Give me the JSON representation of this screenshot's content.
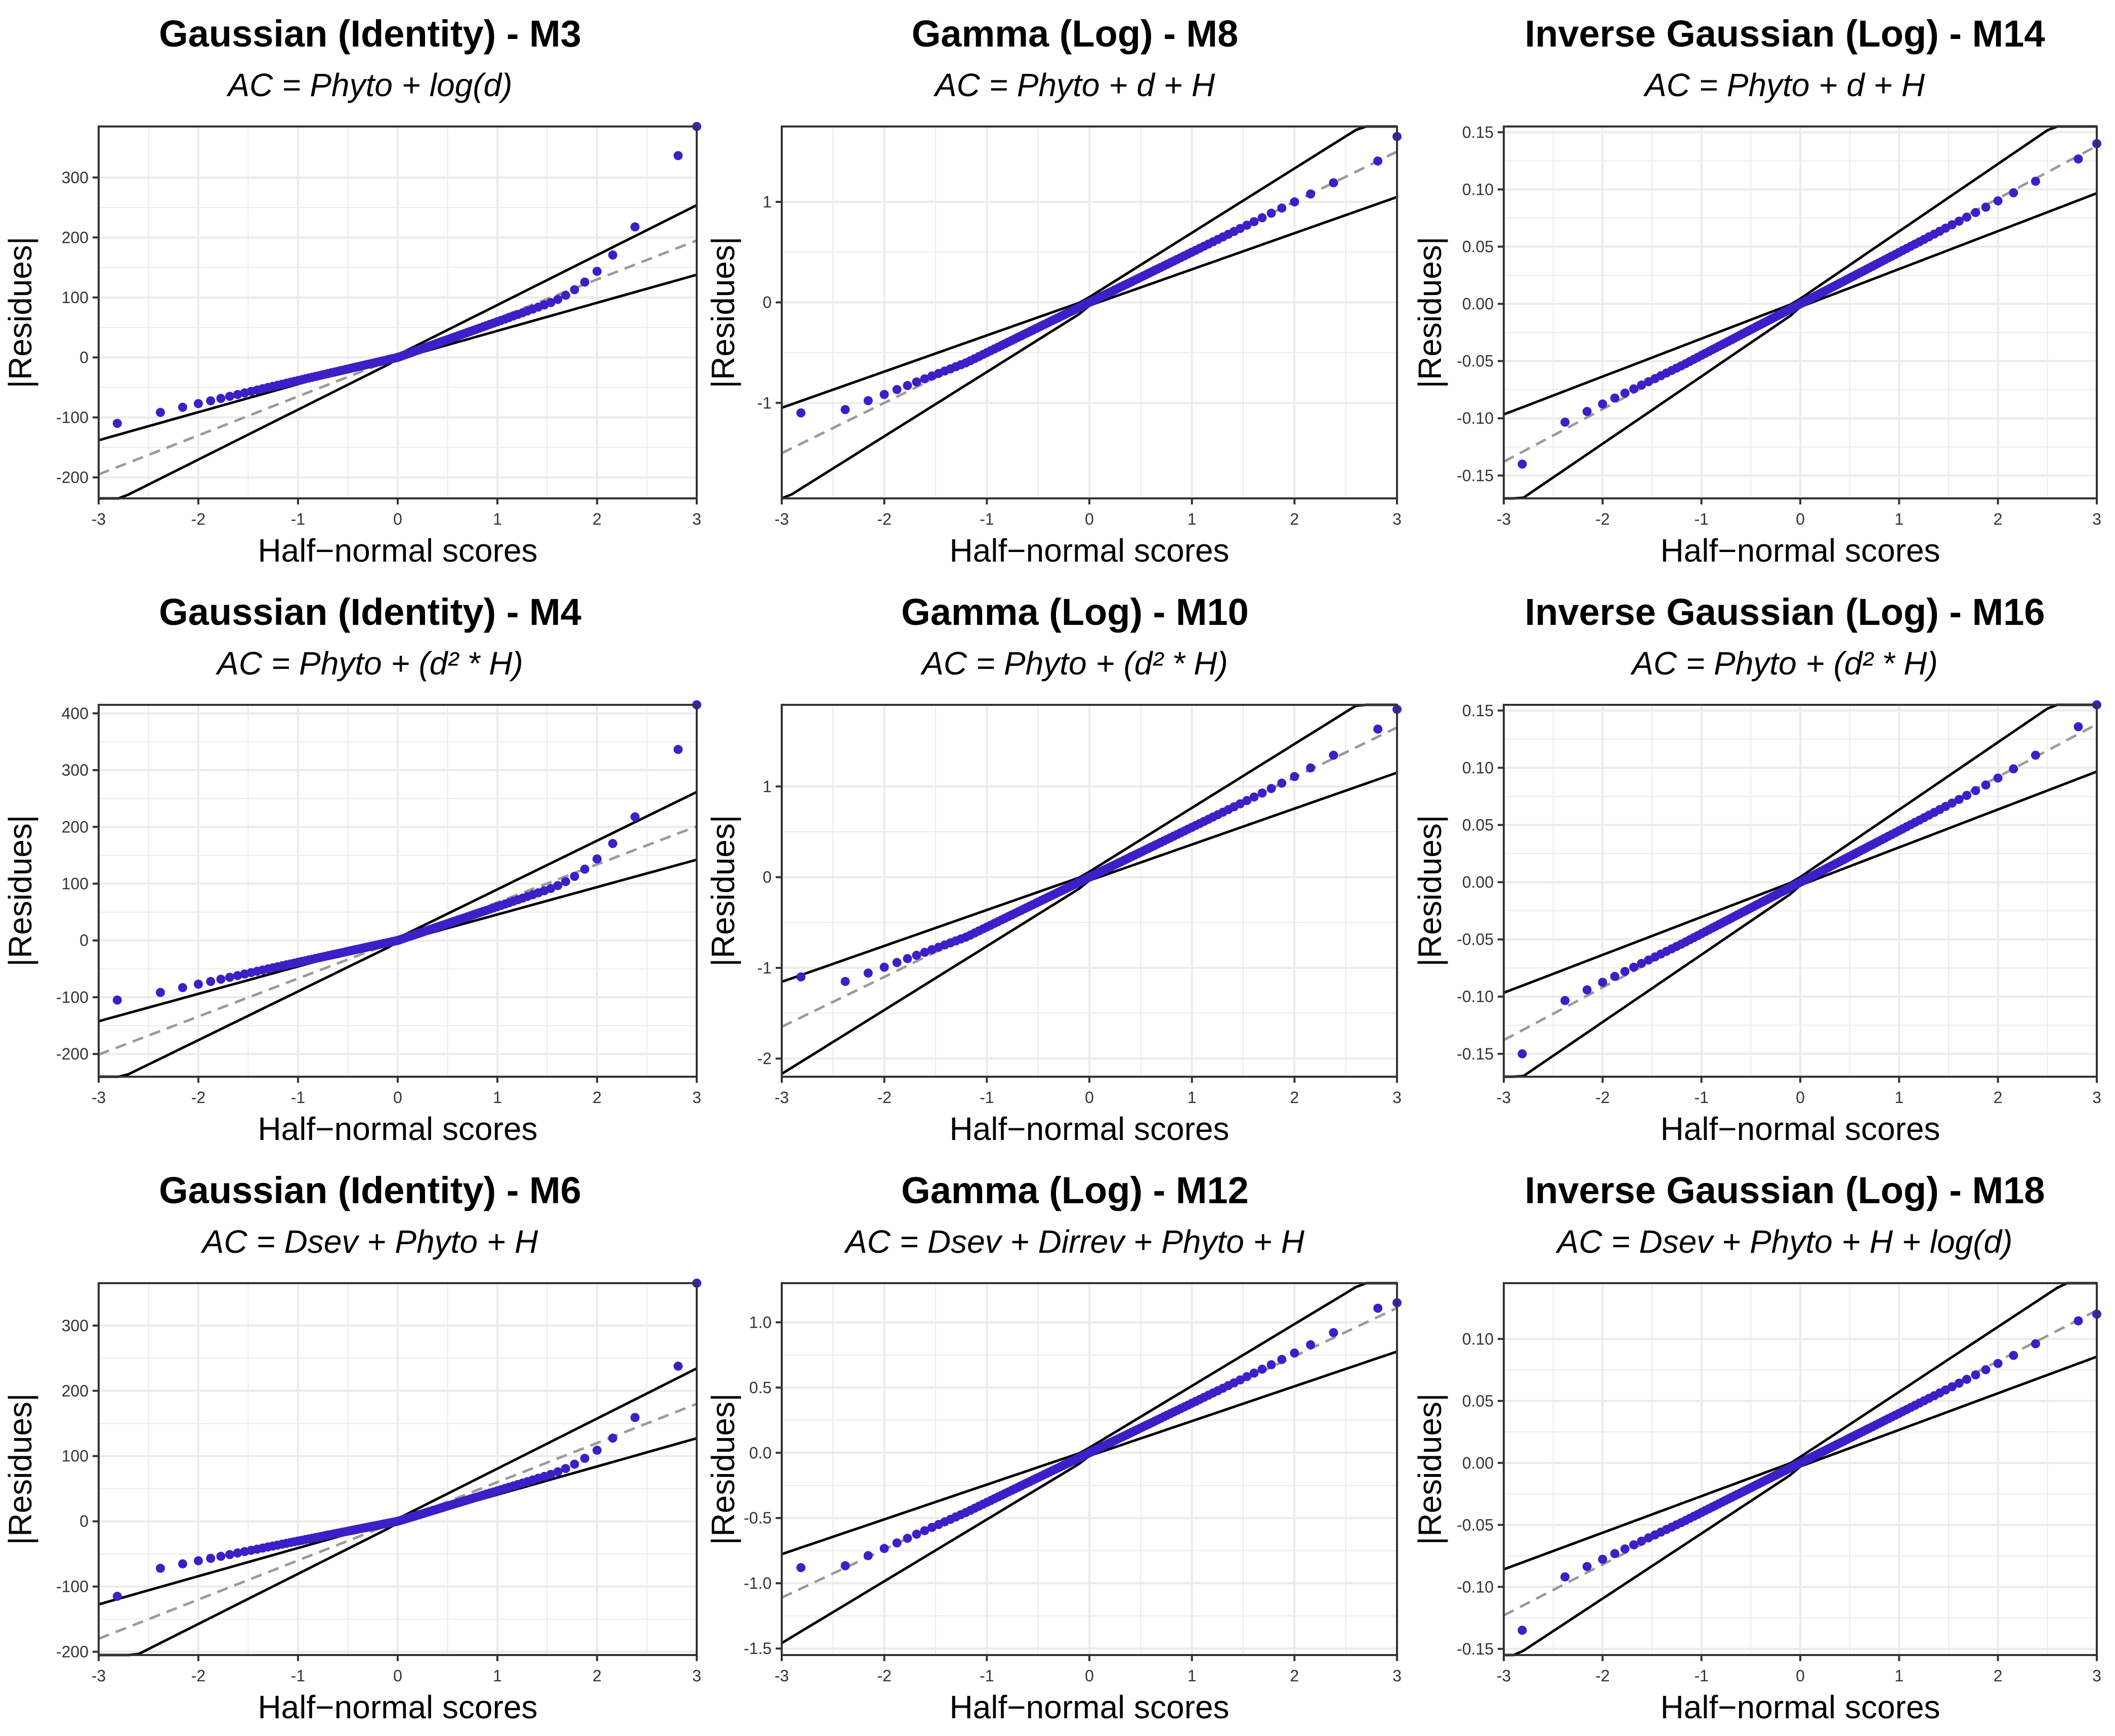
{
  "figure": {
    "colors": {
      "points": "#3d1fc7",
      "envelope": "#000000",
      "reference": "#9a9a9a",
      "grid": "#ebebeb",
      "frame": "#333333"
    }
  },
  "chart_data": [
    {
      "type": "scatter",
      "title": "Gaussian (Identity) - M3",
      "subtitle": "AC = Phyto + log(d)",
      "xlabel": "Half−normal scores",
      "ylabel": "|Residues|",
      "xlim": [
        -3,
        3
      ],
      "ylim": [
        -235,
        385
      ],
      "xticks": [
        -3,
        -2,
        -1,
        0,
        1,
        2,
        3
      ],
      "xtick_labels": [
        "-3",
        "-2",
        "-1",
        "0",
        "1",
        "2",
        "3"
      ],
      "yticks": [
        -200,
        -100,
        0,
        100,
        200,
        300
      ],
      "ytick_labels": [
        "-200",
        "-100",
        "0",
        "100",
        "200",
        "300"
      ],
      "series": [
        {
          "name": "residuals",
          "shape": "tail",
          "base": 70,
          "lo": -110,
          "hi": 385,
          "bend": 1.0,
          "tail": 1.0
        }
      ],
      "envelope": {
        "center": 0,
        "slope": 65,
        "spread_low": 26,
        "spread_high": 28
      }
    },
    {
      "type": "scatter",
      "title": "Gamma (Log) - M8",
      "subtitle": "AC = Phyto + d + H",
      "xlabel": "Half−normal scores",
      "ylabel": "|Residues|",
      "xlim": [
        -3,
        3
      ],
      "ylim": [
        -1.95,
        1.75
      ],
      "xticks": [
        -3,
        -2,
        -1,
        0,
        1,
        2,
        3
      ],
      "xtick_labels": [
        "-3",
        "-2",
        "-1",
        "0",
        "1",
        "2",
        "3"
      ],
      "yticks": [
        -1,
        0,
        1
      ],
      "ytick_labels": [
        "-1",
        "0",
        "1"
      ],
      "series": [
        {
          "name": "residuals",
          "shape": "mild",
          "base": 0.5,
          "lo": -1.1,
          "hi": 1.65,
          "bend": 0.6,
          "tail": 0.0
        }
      ],
      "envelope": {
        "center": 0,
        "slope": 0.5,
        "spread_low": 0.35,
        "spread_high": 0.35
      }
    },
    {
      "type": "scatter",
      "title": "Inverse Gaussian (Log) - M14",
      "subtitle": "AC = Phyto + d + H",
      "xlabel": "Half−normal scores",
      "ylabel": "|Residues|",
      "xlim": [
        -3,
        3
      ],
      "ylim": [
        -0.17,
        0.155
      ],
      "xticks": [
        -3,
        -2,
        -1,
        0,
        1,
        2,
        3
      ],
      "xtick_labels": [
        "-3",
        "-2",
        "-1",
        "0",
        "1",
        "2",
        "3"
      ],
      "yticks": [
        -0.15,
        -0.1,
        -0.05,
        0,
        0.05,
        0.1,
        0.15
      ],
      "ytick_labels": [
        "-0.15",
        "-0.10",
        "-0.05",
        "0.00",
        "0.05",
        "0.10",
        "0.15"
      ],
      "series": [
        {
          "name": "residuals",
          "shape": "mild",
          "base": 0.045,
          "lo": -0.14,
          "hi": 0.14,
          "bend": 0.2,
          "tail": 0.0
        }
      ],
      "envelope": {
        "center": 0,
        "slope": 0.046,
        "spread_low": 0.03,
        "spread_high": 0.03
      }
    },
    {
      "type": "scatter",
      "title": "Gaussian (Identity) - M4",
      "subtitle": "AC = Phyto +  (d² * H)",
      "xlabel": "Half−normal scores",
      "ylabel": "|Residues|",
      "xlim": [
        -3,
        3
      ],
      "ylim": [
        -240,
        415
      ],
      "xticks": [
        -3,
        -2,
        -1,
        0,
        1,
        2,
        3
      ],
      "xtick_labels": [
        "-3",
        "-2",
        "-1",
        "0",
        "1",
        "2",
        "3"
      ],
      "yticks": [
        -200,
        -100,
        0,
        100,
        200,
        300,
        400
      ],
      "ytick_labels": [
        "-200",
        "-100",
        "0",
        "100",
        "200",
        "300",
        "400"
      ],
      "series": [
        {
          "name": "residuals",
          "shape": "tail",
          "base": 70,
          "lo": -105,
          "hi": 415,
          "bend": 1.0,
          "tail": 1.0
        }
      ],
      "envelope": {
        "center": 0,
        "slope": 67,
        "spread_low": 27,
        "spread_high": 28
      }
    },
    {
      "type": "scatter",
      "title": "Gamma (Log) - M10",
      "subtitle": "AC = Phyto +  (d² * H)",
      "xlabel": "Half−normal scores",
      "ylabel": "|Residues|",
      "xlim": [
        -3,
        3
      ],
      "ylim": [
        -2.2,
        1.9
      ],
      "xticks": [
        -3,
        -2,
        -1,
        0,
        1,
        2,
        3
      ],
      "xtick_labels": [
        "-3",
        "-2",
        "-1",
        "0",
        "1",
        "2",
        "3"
      ],
      "yticks": [
        -2,
        -1,
        0,
        1
      ],
      "ytick_labels": [
        "-2",
        "-1",
        "0",
        "1"
      ],
      "series": [
        {
          "name": "residuals",
          "shape": "mild",
          "base": 0.55,
          "lo": -1.1,
          "hi": 1.85,
          "bend": 0.7,
          "tail": 0.3
        }
      ],
      "envelope": {
        "center": 0,
        "slope": 0.55,
        "spread_low": 0.38,
        "spread_high": 0.4
      }
    },
    {
      "type": "scatter",
      "title": "Inverse Gaussian (Log) - M16",
      "subtitle": "AC = Phyto +  (d² * H)",
      "xlabel": "Half−normal scores",
      "ylabel": "|Residues|",
      "xlim": [
        -3,
        3
      ],
      "ylim": [
        -0.17,
        0.155
      ],
      "xticks": [
        -3,
        -2,
        -1,
        0,
        1,
        2,
        3
      ],
      "xtick_labels": [
        "-3",
        "-2",
        "-1",
        "0",
        "1",
        "2",
        "3"
      ],
      "yticks": [
        -0.15,
        -0.1,
        -0.05,
        0,
        0.05,
        0.1,
        0.15
      ],
      "ytick_labels": [
        "-0.15",
        "-0.10",
        "-0.05",
        "0.00",
        "0.05",
        "0.10",
        "0.15"
      ],
      "series": [
        {
          "name": "residuals",
          "shape": "mild",
          "base": 0.045,
          "lo": -0.15,
          "hi": 0.155,
          "bend": 0.2,
          "tail": 0.4
        }
      ],
      "envelope": {
        "center": 0,
        "slope": 0.046,
        "spread_low": 0.03,
        "spread_high": 0.03
      }
    },
    {
      "type": "scatter",
      "title": "Gaussian (Identity) - M6",
      "subtitle": "AC = Dsev + Phyto + H",
      "xlabel": "Half−normal scores",
      "ylabel": "|Residues|",
      "xlim": [
        -3,
        3
      ],
      "ylim": [
        -205,
        365
      ],
      "xticks": [
        -3,
        -2,
        -1,
        0,
        1,
        2,
        3
      ],
      "xtick_labels": [
        "-3",
        "-2",
        "-1",
        "0",
        "1",
        "2",
        "3"
      ],
      "yticks": [
        -200,
        -100,
        0,
        100,
        200,
        300
      ],
      "ytick_labels": [
        "-200",
        "-100",
        "0",
        "100",
        "200",
        "300"
      ],
      "series": [
        {
          "name": "residuals",
          "shape": "tail",
          "base": 55,
          "lo": -115,
          "hi": 365,
          "bend": 0.8,
          "tail": 0.8
        }
      ],
      "envelope": {
        "center": 0,
        "slope": 60,
        "spread_low": 25,
        "spread_high": 26
      }
    },
    {
      "type": "scatter",
      "title": "Gamma (Log) - M12",
      "subtitle": "AC = Dsev + Dirrev + Phyto + H",
      "xlabel": "Half−normal scores",
      "ylabel": "|Residues|",
      "xlim": [
        -3,
        3
      ],
      "ylim": [
        -1.55,
        1.3
      ],
      "xticks": [
        -3,
        -2,
        -1,
        0,
        1,
        2,
        3
      ],
      "xtick_labels": [
        "-3",
        "-2",
        "-1",
        "0",
        "1",
        "2",
        "3"
      ],
      "yticks": [
        -1.5,
        -1,
        -0.5,
        0,
        0.5,
        1
      ],
      "ytick_labels": [
        "-1.5",
        "-1.0",
        "-0.5",
        "0.0",
        "0.5",
        "1.0"
      ],
      "series": [
        {
          "name": "residuals",
          "shape": "mild",
          "base": 0.38,
          "lo": -0.88,
          "hi": 1.15,
          "bend": 0.25,
          "tail": 0.2
        }
      ],
      "envelope": {
        "center": 0,
        "slope": 0.37,
        "spread_low": 0.25,
        "spread_high": 0.26
      }
    },
    {
      "type": "scatter",
      "title": "Inverse Gaussian (Log) - M18",
      "subtitle": "AC = Dsev + Phyto + H + log(d)",
      "xlabel": "Half−normal scores",
      "ylabel": "|Residues|",
      "xlim": [
        -3,
        3
      ],
      "ylim": [
        -0.155,
        0.145
      ],
      "xticks": [
        -3,
        -2,
        -1,
        0,
        1,
        2,
        3
      ],
      "xtick_labels": [
        "-3",
        "-2",
        "-1",
        "0",
        "1",
        "2",
        "3"
      ],
      "yticks": [
        -0.15,
        -0.1,
        -0.05,
        0,
        0.05,
        0.1
      ],
      "ytick_labels": [
        "-0.15",
        "-0.10",
        "-0.05",
        "0.00",
        "0.05",
        "0.10"
      ],
      "series": [
        {
          "name": "residuals",
          "shape": "mild",
          "base": 0.04,
          "lo": -0.135,
          "hi": 0.12,
          "bend": 0.2,
          "tail": 0.1
        }
      ],
      "envelope": {
        "center": 0,
        "slope": 0.041,
        "spread_low": 0.03,
        "spread_high": 0.032
      }
    }
  ]
}
